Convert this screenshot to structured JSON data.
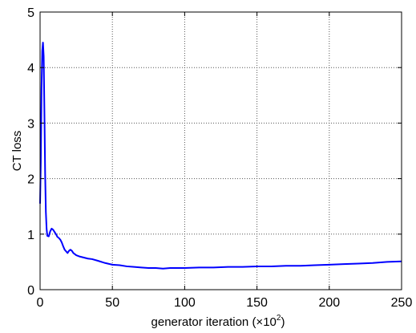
{
  "chart_data": {
    "type": "line",
    "title": "",
    "xlabel": "generator iteration (×10",
    "xlabel_exponent": "2",
    "xlabel_close": ")",
    "ylabel": "CT loss",
    "xlim": [
      0,
      250
    ],
    "ylim": [
      0,
      5
    ],
    "xticks": [
      0,
      50,
      100,
      150,
      200,
      250
    ],
    "yticks": [
      0,
      1,
      2,
      3,
      4,
      5
    ],
    "grid": true,
    "grid_style": "dotted",
    "series": [
      {
        "color": "#0000ff",
        "x": [
          0,
          0.5,
          1,
          1.5,
          2,
          2.5,
          3,
          3.5,
          4,
          4.5,
          5,
          6,
          7,
          8,
          9,
          10,
          11,
          12,
          13,
          14,
          15,
          16,
          17,
          18,
          19,
          20,
          21,
          22,
          23,
          24,
          25,
          27,
          30,
          33,
          36,
          40,
          45,
          50,
          55,
          60,
          65,
          70,
          75,
          80,
          85,
          90,
          95,
          100,
          110,
          120,
          130,
          140,
          150,
          160,
          170,
          180,
          190,
          200,
          210,
          220,
          230,
          240,
          250
        ],
        "y": [
          1.55,
          2.3,
          3.6,
          4.3,
          4.45,
          4.2,
          3.2,
          2.1,
          1.4,
          1.1,
          0.97,
          0.96,
          1.05,
          1.1,
          1.08,
          1.04,
          1.0,
          0.95,
          0.93,
          0.9,
          0.85,
          0.78,
          0.72,
          0.69,
          0.66,
          0.7,
          0.72,
          0.7,
          0.66,
          0.64,
          0.62,
          0.6,
          0.58,
          0.56,
          0.55,
          0.52,
          0.48,
          0.45,
          0.44,
          0.42,
          0.41,
          0.4,
          0.39,
          0.39,
          0.38,
          0.39,
          0.39,
          0.39,
          0.4,
          0.4,
          0.41,
          0.41,
          0.42,
          0.42,
          0.43,
          0.43,
          0.44,
          0.45,
          0.46,
          0.47,
          0.48,
          0.5,
          0.51
        ]
      }
    ]
  },
  "colors": {
    "line": "#0000ff",
    "axes": "#000000",
    "grid": "#555555",
    "background": "#ffffff"
  }
}
